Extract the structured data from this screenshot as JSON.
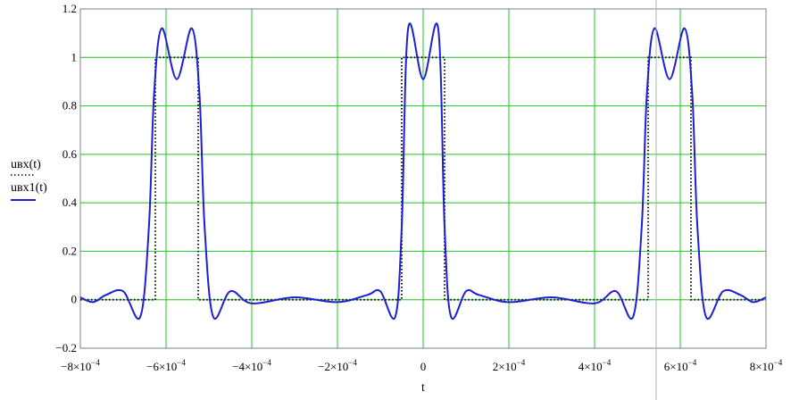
{
  "chart_data": {
    "type": "line",
    "xlabel": "t",
    "xlim": [
      -0.0008,
      0.0008
    ],
    "ylim": [
      -0.2,
      1.2
    ],
    "grid": true,
    "legend": "left",
    "x_ticks": [
      {
        "mant": "−8×10",
        "exp": "−4"
      },
      {
        "mant": "−6×10",
        "exp": "−4"
      },
      {
        "mant": "−4×10",
        "exp": "−4"
      },
      {
        "mant": "−2×10",
        "exp": "−4"
      },
      {
        "mant": "0",
        "exp": ""
      },
      {
        "mant": "2×10",
        "exp": "−4"
      },
      {
        "mant": "4×10",
        "exp": "−4"
      },
      {
        "mant": "6×10",
        "exp": "−4"
      },
      {
        "mant": "8×10",
        "exp": "−4"
      }
    ],
    "x_tick_values": [
      -0.0008,
      -0.0006,
      -0.0004,
      -0.0002,
      0,
      0.0002,
      0.0004,
      0.0006,
      0.0008
    ],
    "y_ticks": [
      "1.2",
      "1",
      "0.8",
      "0.6",
      "0.4",
      "0.2",
      "0",
      "−0.2"
    ],
    "y_tick_values": [
      1.2,
      1.0,
      0.8,
      0.6,
      0.4,
      0.2,
      0.0,
      -0.2
    ],
    "pulse_period": 0.000575,
    "pulse_width": 0.0001,
    "pulse_centers": [
      -0.000575,
      0.0,
      0.000575
    ],
    "series": [
      {
        "name": "uвх(t)",
        "style": "dotted",
        "color": "#000000",
        "x": [
          -0.0008,
          -0.000625,
          -0.000625,
          -0.000525,
          -0.000525,
          -5e-05,
          -5e-05,
          5e-05,
          5e-05,
          0.000525,
          0.000525,
          0.000625,
          0.000625,
          0.0008
        ],
        "y": [
          0,
          0,
          1,
          1,
          0,
          0,
          1,
          1,
          0,
          0,
          1,
          1,
          0,
          0
        ]
      },
      {
        "name": "uвх1(t)",
        "style": "solid",
        "color": "#1f1fd0",
        "x": [
          -0.0008,
          -0.00077,
          -0.00074,
          -0.0007,
          -0.00066,
          -0.00064,
          -0.000628,
          -0.00061,
          -0.000575,
          -0.00054,
          -0.000522,
          -0.00051,
          -0.00049,
          -0.00045,
          -0.0004,
          -0.0003,
          -0.0002,
          -0.00013,
          -0.0001,
          -6.5e-05,
          -5e-05,
          -3.5e-05,
          0,
          3.5e-05,
          5e-05,
          6.5e-05,
          0.0001,
          0.00013,
          0.0002,
          0.0003,
          0.0004,
          0.00045,
          0.00049,
          0.00051,
          0.000522,
          0.00054,
          0.000575,
          0.00061,
          0.000628,
          0.00064,
          0.00066,
          0.0007,
          0.00074,
          0.00077,
          0.0008
        ],
        "y": [
          0.01,
          -0.01,
          0.02,
          0.035,
          -0.07,
          0.3,
          0.85,
          1.12,
          0.91,
          1.12,
          0.85,
          0.3,
          -0.07,
          0.035,
          -0.015,
          0.01,
          -0.01,
          0.02,
          0.035,
          -0.07,
          0.3,
          1.12,
          0.91,
          1.12,
          0.3,
          -0.07,
          0.035,
          0.02,
          -0.01,
          0.01,
          -0.015,
          0.035,
          -0.07,
          0.3,
          0.85,
          1.12,
          0.91,
          1.12,
          0.85,
          0.3,
          -0.07,
          0.035,
          0.02,
          -0.01,
          0.01
        ]
      }
    ]
  },
  "legend": {
    "items": [
      {
        "label": "uвх(t)",
        "style": "dotted"
      },
      {
        "label": "uвх1(t)",
        "style": "solid"
      }
    ]
  },
  "colors": {
    "grid": "#22c422",
    "axes": "#808080",
    "series_solid": "#1f1fd0",
    "series_dotted": "#000000"
  }
}
